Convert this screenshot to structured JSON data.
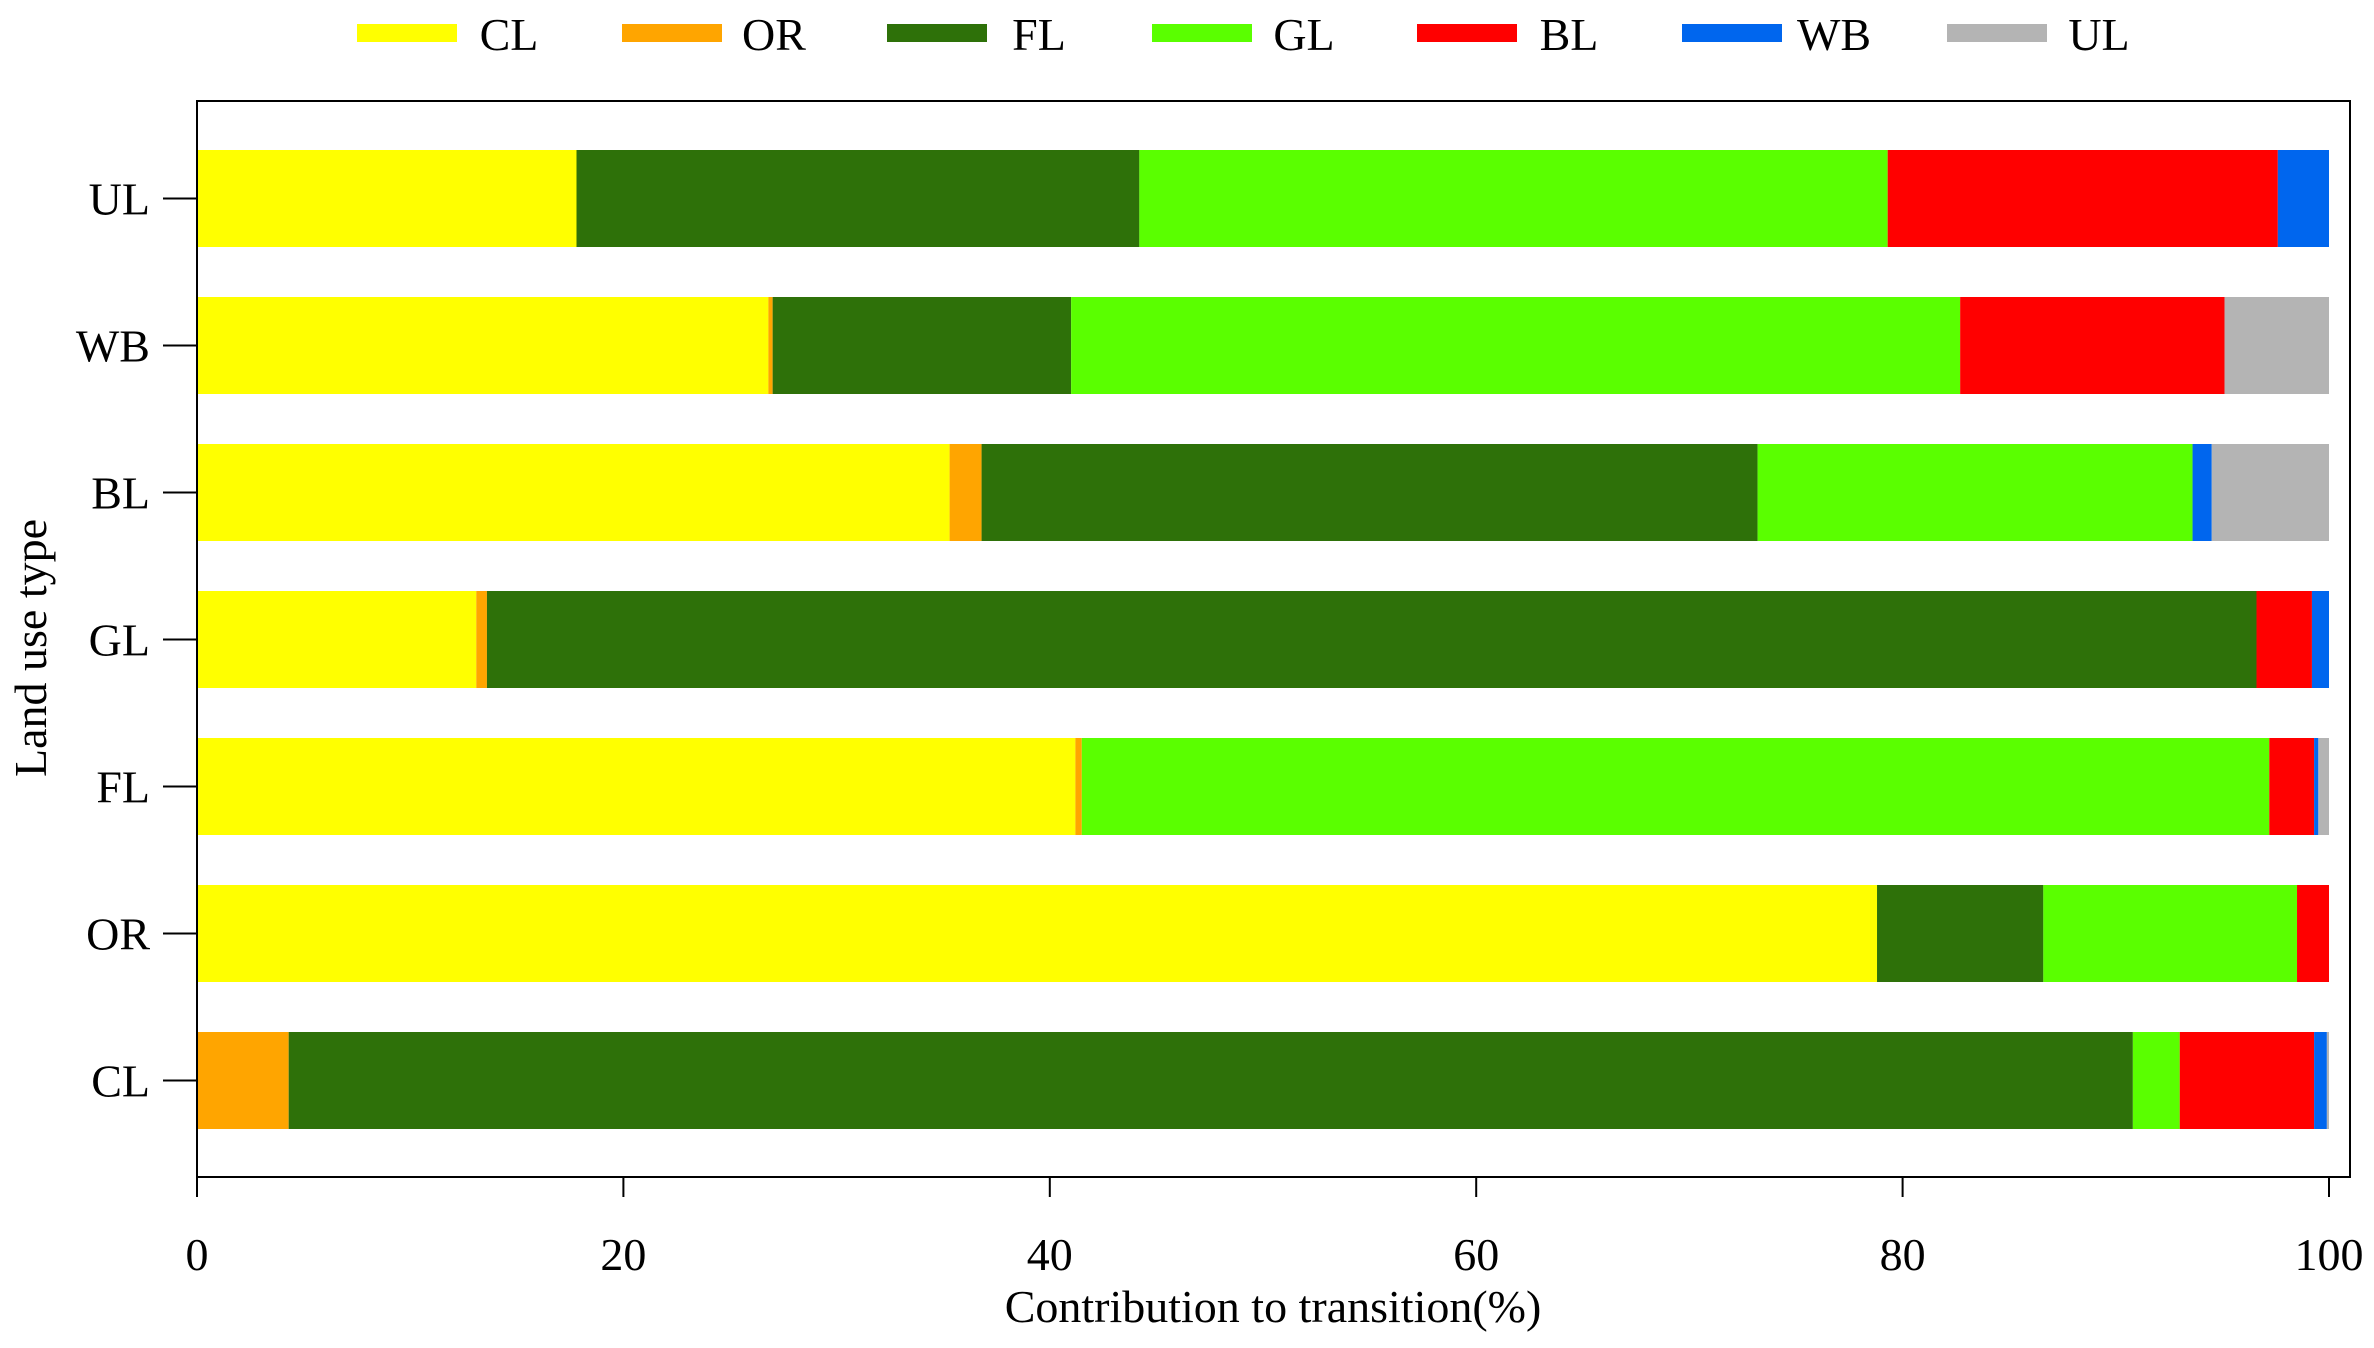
{
  "chart_data": {
    "type": "bar",
    "orientation": "horizontal",
    "stacked": true,
    "title": "",
    "xlabel": "Contribution to transition(%)",
    "ylabel": "Land use type",
    "xlim": [
      0,
      100
    ],
    "xticks": [
      0,
      20,
      40,
      60,
      80,
      100
    ],
    "grid": false,
    "legend_position": "top",
    "categories": [
      "UL",
      "WB",
      "BL",
      "GL",
      "FL",
      "OR",
      "CL"
    ],
    "series": [
      {
        "name": "CL",
        "color": "#FFFF00",
        "values": [
          17.8,
          26.8,
          35.3,
          13.1,
          41.2,
          78.8,
          0
        ]
      },
      {
        "name": "OR",
        "color": "#FFA500",
        "values": [
          0,
          0.2,
          1.5,
          0.5,
          0.3,
          0,
          4.3
        ]
      },
      {
        "name": "FL",
        "color": "#2E7109",
        "values": [
          26.4,
          14.0,
          36.4,
          83.0,
          0,
          7.8,
          86.5
        ]
      },
      {
        "name": "GL",
        "color": "#5AFF00",
        "values": [
          35.1,
          41.7,
          20.4,
          0,
          55.7,
          11.9,
          2.2
        ]
      },
      {
        "name": "BL",
        "color": "#FF0000",
        "values": [
          18.3,
          12.4,
          0,
          2.6,
          2.1,
          1.5,
          6.3
        ]
      },
      {
        "name": "WB",
        "color": "#0066EE",
        "values": [
          2.4,
          0,
          0.9,
          0.8,
          0.2,
          0,
          0.6
        ]
      },
      {
        "name": "UL",
        "color": "#B4B4B4",
        "values": [
          0,
          4.9,
          5.5,
          0,
          0.5,
          0,
          0.1
        ]
      }
    ]
  }
}
